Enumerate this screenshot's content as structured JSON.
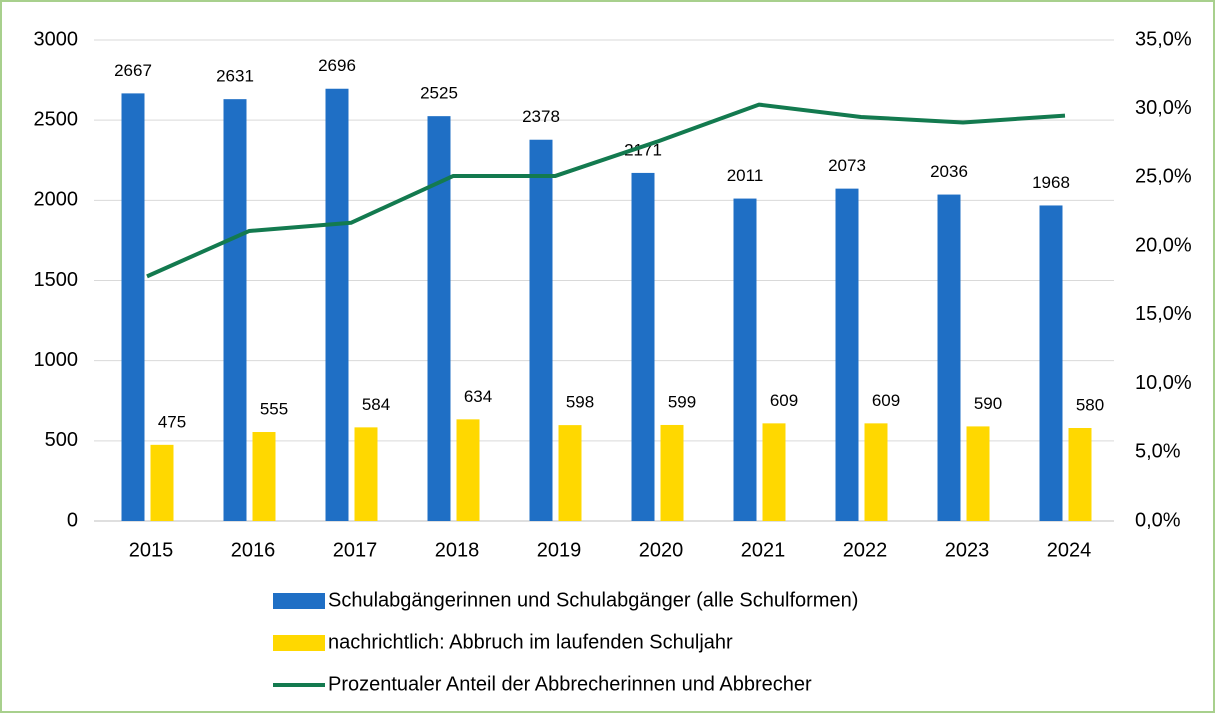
{
  "chart_data": {
    "type": "bar",
    "categories": [
      "2015",
      "2016",
      "2017",
      "2018",
      "2019",
      "2020",
      "2021",
      "2022",
      "2023",
      "2024"
    ],
    "series": [
      {
        "name": "Schulabgängerinnen und Schulabgänger (alle Schulformen)",
        "color": "#1f6fc5",
        "type": "bar",
        "values": [
          2667,
          2631,
          2696,
          2525,
          2378,
          2171,
          2011,
          2073,
          2036,
          1968
        ]
      },
      {
        "name": "nachrichtlich: Abbruch im laufenden Schuljahr",
        "color": "#ffd800",
        "type": "bar",
        "values": [
          475,
          555,
          584,
          634,
          598,
          599,
          609,
          609,
          590,
          580
        ]
      },
      {
        "name": "Prozentualer Anteil der Abbrecherinnen und Abbrecher",
        "color": "#137a4f",
        "type": "line",
        "axis": "y2",
        "values": [
          17.8,
          21.1,
          21.7,
          25.1,
          25.1,
          27.6,
          30.3,
          29.4,
          29.0,
          29.5
        ]
      }
    ],
    "ylim": [
      0,
      3000
    ],
    "yticks": [
      0,
      500,
      1000,
      1500,
      2000,
      2500,
      3000
    ],
    "y2lim": [
      0,
      35
    ],
    "y2ticks": [
      {
        "value": 0,
        "label": "0,0%"
      },
      {
        "value": 5,
        "label": "5,0%"
      },
      {
        "value": 10,
        "label": "10,0%"
      },
      {
        "value": 15,
        "label": "15,0%"
      },
      {
        "value": 20,
        "label": "20,0%"
      },
      {
        "value": 25,
        "label": "25,0%"
      },
      {
        "value": 30,
        "label": "30,0%"
      },
      {
        "value": 35,
        "label": "35,0%"
      }
    ],
    "grid": true,
    "legend": "bottom"
  }
}
